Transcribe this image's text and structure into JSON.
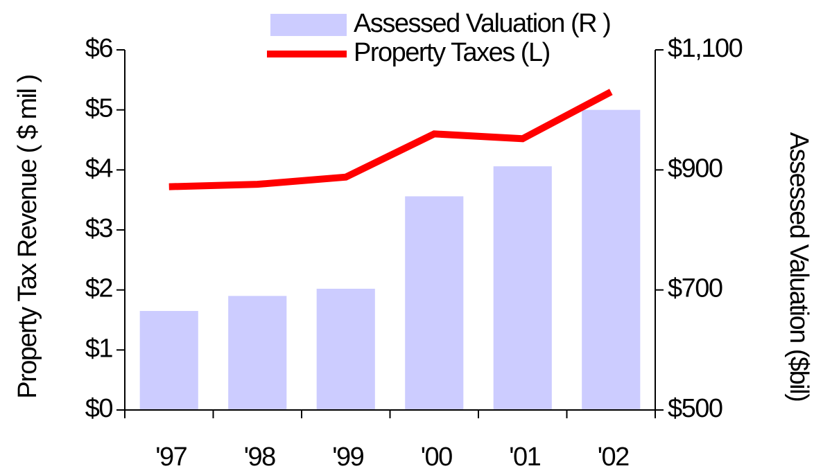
{
  "chart_data": {
    "type": "bar_line",
    "y_label": "Property Tax Revenue ( $ mil )",
    "y2_label": "Assessed Valuation ($bil)",
    "categories": [
      "'97",
      "'98",
      "'99",
      "'00",
      "'01",
      "'02"
    ],
    "series": [
      {
        "name": "Assessed Valuation (R )",
        "type": "bar",
        "axis": "y2",
        "color": "#ccccff",
        "values": [
          665,
          690,
          702,
          856,
          906,
          1000
        ]
      },
      {
        "name": "Property Taxes (L)",
        "type": "line",
        "axis": "y",
        "color": "#ff0000",
        "values": [
          3.72,
          3.76,
          3.88,
          4.6,
          4.52,
          5.3
        ]
      }
    ],
    "ylim": [
      0,
      6
    ],
    "yticks": [
      {
        "value": 0,
        "label": "$0"
      },
      {
        "value": 1,
        "label": "$1"
      },
      {
        "value": 2,
        "label": "$2"
      },
      {
        "value": 3,
        "label": "$3"
      },
      {
        "value": 4,
        "label": "$4"
      },
      {
        "value": 5,
        "label": "$5"
      },
      {
        "value": 6,
        "label": "$6"
      }
    ],
    "y2lim": [
      500,
      1100
    ],
    "y2ticks": [
      {
        "value": 500,
        "label": "$500"
      },
      {
        "value": 700,
        "label": "$700"
      },
      {
        "value": 900,
        "label": "$900"
      },
      {
        "value": 1100,
        "label": "$1,100"
      }
    ],
    "legend": "top"
  }
}
